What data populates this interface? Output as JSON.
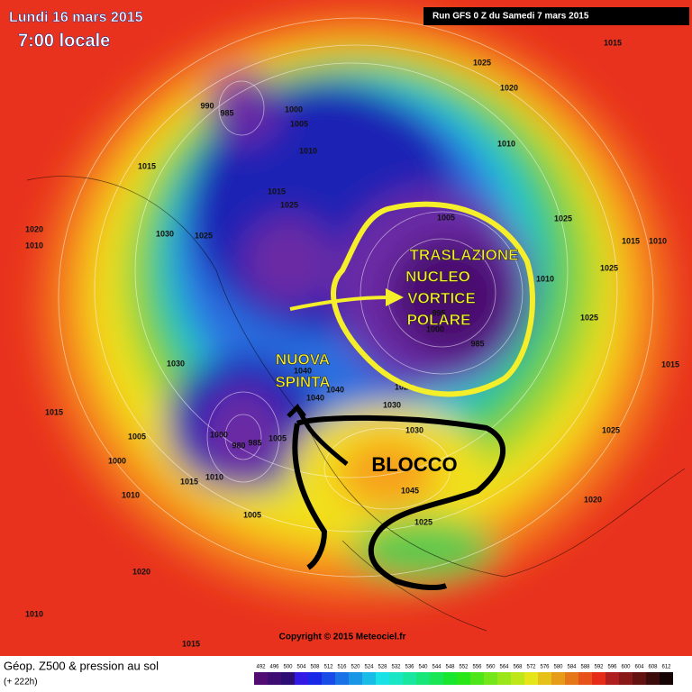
{
  "header": {
    "date": "Lundi 16 mars 2015",
    "time": "7:00 locale",
    "run": "Run GFS 0 Z du Samedi 7 mars 2015"
  },
  "copyright": "Copyright © 2015 Meteociel.fr",
  "footer": {
    "title": "Géop. Z500 & pression au sol",
    "lead": "(+ 222h)"
  },
  "colorbar": {
    "values": [
      492,
      496,
      500,
      504,
      508,
      512,
      516,
      520,
      524,
      528,
      532,
      536,
      540,
      544,
      548,
      552,
      556,
      560,
      564,
      568,
      572,
      576,
      580,
      584,
      588,
      592,
      596,
      600,
      604,
      608,
      612
    ]
  },
  "annotations": {
    "vortex": [
      "TRASLAZIONE",
      "NUCLEO",
      "VORTICE",
      "POLARE"
    ],
    "push": [
      "NUOVA",
      "SPINTA"
    ],
    "block": "BLOCCO"
  },
  "isobar_labels": [
    "1015",
    "1025",
    "1020",
    "1010",
    "1015",
    "1025",
    "1015",
    "1005",
    "1010",
    "1030",
    "1025",
    "1020",
    "1010",
    "1025",
    "1015",
    "1010",
    "1025",
    "1025",
    "1030",
    "1015",
    "1005",
    "1000",
    "1010",
    "1015",
    "1010",
    "1000",
    "980",
    "985",
    "1005",
    "1040",
    "1040",
    "1040",
    "1020",
    "1030",
    "1030",
    "1045",
    "1025",
    "1005",
    "1020",
    "1010",
    "1015",
    "1025",
    "1020",
    "1015",
    "985",
    "1000",
    "995",
    "1005",
    "1010",
    "990",
    "985",
    "1000"
  ]
}
